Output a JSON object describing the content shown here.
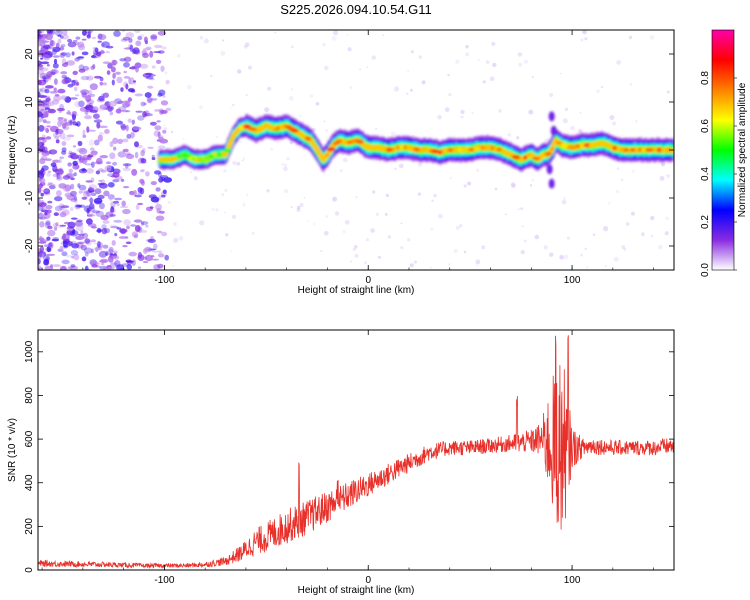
{
  "figure_title": "S225.2026.094.10.54.G11",
  "chart_data": [
    {
      "type": "heatmap",
      "title": "S225.2026.094.10.54.G11",
      "xlabel": "Height of straight line (km)",
      "ylabel": "Frequency (Hz)",
      "xlim": [
        -162,
        150
      ],
      "ylim": [
        -25,
        25
      ],
      "xticks": [
        -100,
        0,
        100
      ],
      "xtick_labels": [
        "-100",
        "0",
        "100"
      ],
      "yticks": [
        -20,
        -10,
        0,
        10,
        20
      ],
      "ytick_labels": [
        "-20",
        "-10",
        "0",
        "10",
        "20"
      ],
      "colorbar": {
        "label": "Normalized spectral amplitude",
        "range": [
          0,
          1
        ],
        "ticks": [
          0.0,
          0.2,
          0.4,
          0.6,
          0.8
        ],
        "tick_labels": [
          "0.0",
          "0.2",
          "0.4",
          "0.6",
          "0.8"
        ],
        "colormap": [
          "#ffffff",
          "#8a2be2",
          "#0000ff",
          "#00ffff",
          "#00ff00",
          "#ffff00",
          "#ff8000",
          "#ff0000",
          "#ff00aa"
        ]
      },
      "ridge": {
        "x": [
          -102,
          -96,
          -90,
          -85,
          -80,
          -75,
          -70,
          -66,
          -63,
          -60,
          -55,
          -50,
          -45,
          -40,
          -36,
          -32,
          -28,
          -25,
          -22,
          -20,
          -17,
          -14,
          -10,
          -5,
          0,
          5,
          10,
          15,
          20,
          25,
          30,
          35,
          40,
          45,
          50,
          55,
          60,
          65,
          70,
          75,
          80,
          83,
          86,
          88,
          90,
          92,
          95,
          100,
          105,
          110,
          115,
          120,
          125,
          130,
          135,
          140,
          145,
          150
        ],
        "f": [
          -2,
          -2,
          -1,
          -2,
          -2,
          -1,
          -1,
          3,
          4.5,
          5,
          4,
          5,
          4.5,
          5,
          4,
          3,
          2,
          0,
          -2,
          -1,
          1,
          2,
          1.5,
          2,
          0.5,
          0.5,
          0,
          0.5,
          0.5,
          0,
          0,
          -0.5,
          0,
          0,
          0,
          0.5,
          0.5,
          0,
          -1,
          -2,
          -1,
          -2,
          -1,
          -1,
          0,
          2,
          1,
          0.5,
          1,
          1,
          1.5,
          0.5,
          0,
          0,
          0,
          0,
          0,
          0
        ]
      }
    },
    {
      "type": "line",
      "xlabel": "Height of straight line (km)",
      "ylabel": "SNR (10 * v/v)",
      "xlim": [
        -162,
        150
      ],
      "ylim": [
        0,
        1100
      ],
      "xticks": [
        -100,
        0,
        100
      ],
      "xtick_labels": [
        "-100",
        "0",
        "100"
      ],
      "yticks": [
        0,
        200,
        400,
        600,
        800,
        1000
      ],
      "ytick_labels": [
        "0",
        "200",
        "400",
        "600",
        "800",
        "1000"
      ],
      "series": [
        {
          "name": "SNR",
          "color": "#e8302a",
          "envelope_x": [
            -162,
            -130,
            -110,
            -90,
            -80,
            -70,
            -62,
            -55,
            -50,
            -40,
            -30,
            -20,
            -10,
            0,
            10,
            20,
            30,
            40,
            50,
            60,
            70,
            80,
            85,
            90,
            95,
            100,
            105,
            110,
            120,
            130,
            140,
            150
          ],
          "envelope_mean": [
            30,
            25,
            20,
            20,
            25,
            40,
            80,
            130,
            150,
            200,
            240,
            290,
            340,
            390,
            440,
            490,
            540,
            560,
            560,
            570,
            580,
            590,
            600,
            580,
            560,
            560,
            560,
            570,
            560,
            560,
            560,
            570
          ],
          "envelope_noise": [
            15,
            12,
            10,
            10,
            12,
            20,
            40,
            60,
            70,
            80,
            80,
            75,
            65,
            55,
            50,
            45,
            40,
            35,
            35,
            35,
            40,
            55,
            80,
            300,
            450,
            100,
            45,
            40,
            35,
            35,
            35,
            40
          ],
          "peaks": [
            {
              "x": -34,
              "y": 500
            },
            {
              "x": -15,
              "y": 440
            },
            {
              "x": 73,
              "y": 810
            },
            {
              "x": 92,
              "y": 1080
            },
            {
              "x": 98,
              "y": 1100
            }
          ]
        }
      ]
    }
  ]
}
